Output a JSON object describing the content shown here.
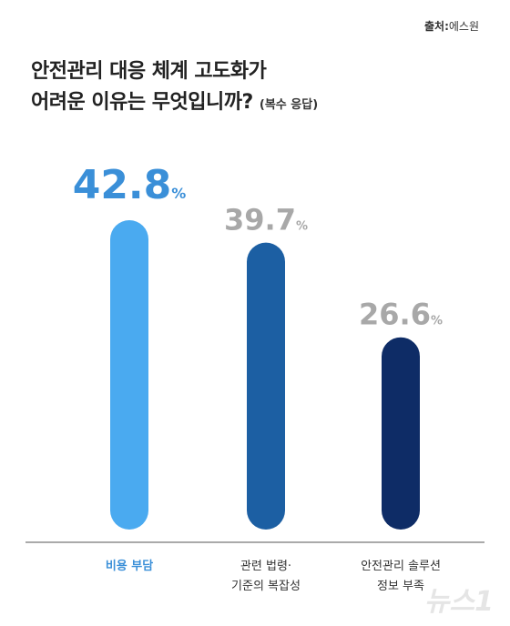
{
  "source": {
    "label": "출처",
    "value": "에스원"
  },
  "chart_data": {
    "type": "bar",
    "title_line1": "안전관리 대응 체계 고도화가",
    "title_line2": "어려운 이유는 무엇입니까?",
    "subtitle": "(복수 응답)",
    "categories": [
      [
        "비용 부담"
      ],
      [
        "관련 법령·",
        "기준의 복잡성"
      ],
      [
        "안전관리 솔루션",
        "정보 부족"
      ]
    ],
    "values": [
      42.8,
      39.7,
      26.6
    ],
    "unit": "%",
    "colors": [
      "#4aaaf0",
      "#1c5fa3",
      "#0e2c66"
    ],
    "highlight_index": 0,
    "highlight_color": "#3a8fd8",
    "muted_color": "#a8a8a8"
  },
  "watermark": "뉴스1"
}
